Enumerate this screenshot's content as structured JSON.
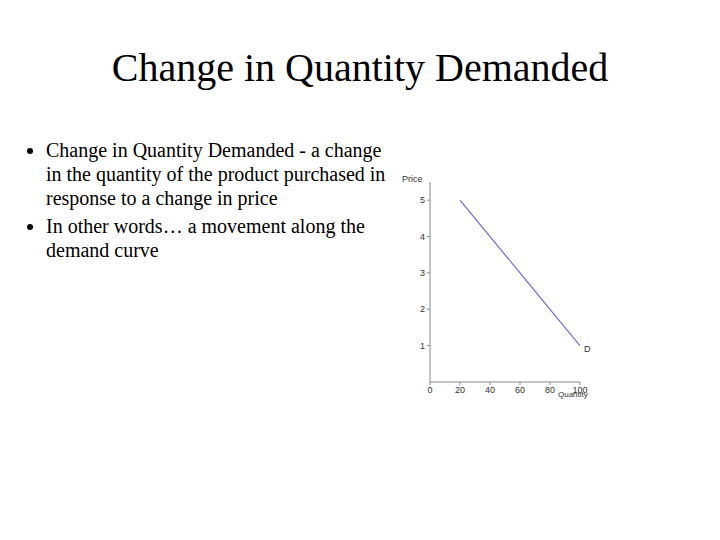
{
  "slide": {
    "title": "Change in Quantity Demanded",
    "bullets": [
      "Change in Quantity Demanded - a change in the quantity of the product purchased in response to a change in price",
      "In other words… a movement along the demand curve"
    ]
  },
  "chart_data": {
    "type": "line",
    "x_label": "Quantity",
    "y_label": "Price",
    "x": [
      20,
      40,
      60,
      80,
      100
    ],
    "series": [
      {
        "name": "D",
        "color": "#6b6bd1",
        "values": [
          5,
          4,
          3,
          2,
          1
        ]
      }
    ],
    "xlim": [
      0,
      100
    ],
    "xticks": [
      0,
      20,
      40,
      60,
      80,
      100
    ],
    "ylim": [
      0,
      5.5
    ],
    "yticks": [
      1,
      2,
      3,
      4,
      5
    ],
    "grid": false
  }
}
